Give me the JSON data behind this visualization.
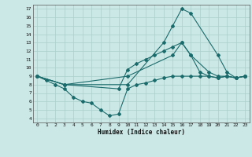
{
  "xlabel": "Humidex (Indice chaleur)",
  "bg_color": "#cce8e6",
  "line_color": "#1a6b6b",
  "grid_color": "#aacfcc",
  "xlim": [
    -0.5,
    23.5
  ],
  "ylim": [
    3.5,
    17.5
  ],
  "xticks": [
    0,
    1,
    2,
    3,
    4,
    5,
    6,
    7,
    8,
    9,
    10,
    11,
    12,
    13,
    14,
    15,
    16,
    17,
    18,
    19,
    20,
    21,
    22,
    23
  ],
  "yticks": [
    4,
    5,
    6,
    7,
    8,
    9,
    10,
    11,
    12,
    13,
    14,
    15,
    16,
    17
  ],
  "line1_x": [
    0,
    1,
    2,
    3,
    4,
    5,
    6,
    7,
    8,
    9,
    10,
    11,
    12,
    13,
    14,
    15,
    16,
    17,
    18,
    19,
    20,
    21,
    22,
    23
  ],
  "line1_y": [
    9.0,
    8.5,
    8.0,
    7.5,
    6.5,
    6.0,
    5.8,
    5.0,
    4.3,
    4.5,
    7.5,
    8.0,
    8.2,
    8.5,
    8.8,
    9.0,
    9.0,
    9.0,
    9.0,
    9.0,
    8.8,
    9.0,
    8.8,
    9.0
  ],
  "line2_x": [
    0,
    3,
    10,
    15,
    16,
    17,
    18,
    19,
    20,
    21,
    22,
    23
  ],
  "line2_y": [
    9.0,
    8.0,
    9.0,
    11.5,
    13.0,
    11.5,
    9.5,
    9.0,
    8.8,
    9.0,
    8.8,
    9.0
  ],
  "line3_x": [
    0,
    3,
    9,
    10,
    11,
    12,
    13,
    14,
    15,
    16,
    17,
    19,
    20,
    21,
    22,
    23
  ],
  "line3_y": [
    9.0,
    8.0,
    7.5,
    9.8,
    10.5,
    11.0,
    11.5,
    12.0,
    12.5,
    13.0,
    11.5,
    9.5,
    9.0,
    9.0,
    8.8,
    9.0
  ],
  "line4_x": [
    0,
    3,
    10,
    14,
    15,
    16,
    17,
    20,
    21,
    22,
    23
  ],
  "line4_y": [
    9.0,
    8.0,
    8.0,
    13.0,
    15.0,
    17.0,
    16.5,
    11.5,
    9.5,
    8.8,
    9.0
  ]
}
